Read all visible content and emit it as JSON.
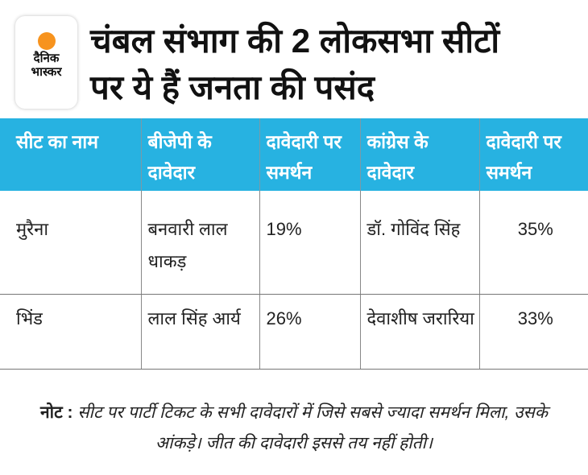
{
  "logo": {
    "line1": "दैनिक",
    "line2": "भास्कर"
  },
  "title": "चंबल संभाग की 2 लोकसभा सीटों पर ये हैं जनता की पसंद",
  "table": {
    "headers": [
      "सीट का नाम",
      "बीजेपी के दावेदार",
      "दावेदारी पर समर्थन",
      "कांग्रेस के दावेदार",
      "दावेदारी पर समर्थन"
    ],
    "rows": [
      {
        "seat": "मुरैना",
        "bjp": "बनवारी लाल धाकड़",
        "bjp_support": "19%",
        "congress": "डॉ. गोविंद सिंह",
        "congress_support": "35%"
      },
      {
        "seat": "भिंड",
        "bjp": "लाल सिंह आर्य",
        "bjp_support": "26%",
        "congress": "देवाशीष जरारिया",
        "congress_support": "33%"
      }
    ]
  },
  "note": {
    "label": "नोट :",
    "text": "सीट पर पार्टी टिकट के सभी दावेदारों में जिसे सबसे ज्यादा समर्थन मिला, उसके आंकड़े। जीत की दावेदारी इससे तय नहीं होती।"
  },
  "colors": {
    "header_bg": "#27b2e1",
    "logo_sun": "#f7931e"
  }
}
